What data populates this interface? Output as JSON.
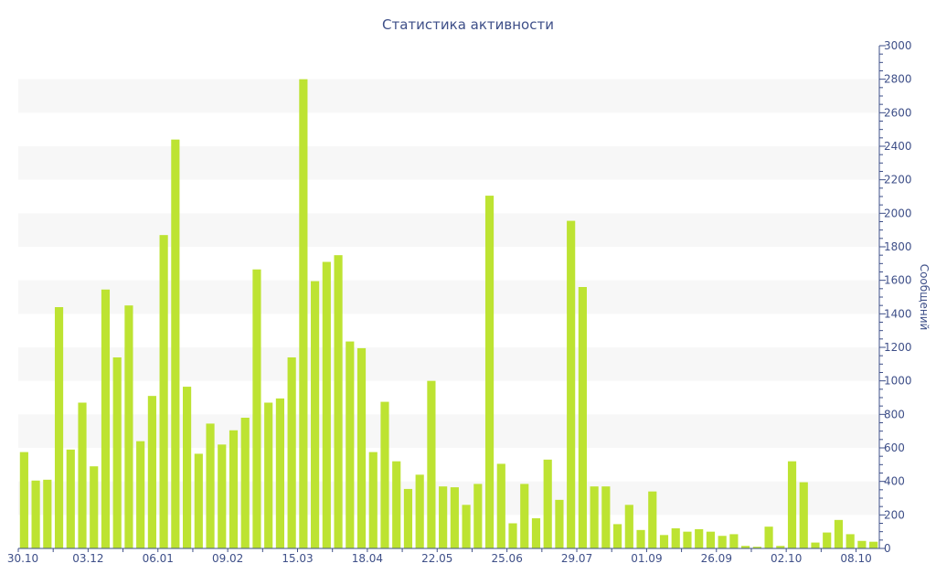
{
  "chart_data": {
    "type": "bar",
    "title": "Статистика активности",
    "xlabel": "",
    "ylabel": "Сообщений",
    "ylim": [
      0,
      3000
    ],
    "y_ticks": [
      0,
      200,
      400,
      600,
      800,
      1000,
      1200,
      1400,
      1600,
      1800,
      2000,
      2200,
      2400,
      2600,
      2800,
      3000
    ],
    "y_axis_position": "right",
    "grid": "alternating horizontal bands",
    "bar_color": "#bde332",
    "band_color": "#f7f7f7",
    "axis_color": "#3e4f88",
    "x_labels": [
      {
        "index": 0,
        "text": "30.10"
      },
      {
        "index": 6,
        "text": "03.12"
      },
      {
        "index": 12,
        "text": "06.01"
      },
      {
        "index": 18,
        "text": "09.02"
      },
      {
        "index": 24,
        "text": "15.03"
      },
      {
        "index": 30,
        "text": "18.04"
      },
      {
        "index": 36,
        "text": "22.05"
      },
      {
        "index": 42,
        "text": "25.06"
      },
      {
        "index": 48,
        "text": "29.07"
      },
      {
        "index": 54,
        "text": "01.09"
      },
      {
        "index": 60,
        "text": "26.09"
      },
      {
        "index": 66,
        "text": "02.10"
      },
      {
        "index": 72,
        "text": "08.10"
      }
    ],
    "values": [
      575,
      405,
      410,
      1440,
      590,
      870,
      490,
      1545,
      1140,
      1450,
      640,
      910,
      1870,
      2440,
      965,
      565,
      745,
      620,
      705,
      780,
      1665,
      870,
      895,
      1140,
      2800,
      1595,
      1710,
      1750,
      1235,
      1195,
      575,
      875,
      520,
      355,
      440,
      1000,
      370,
      365,
      260,
      385,
      2105,
      505,
      150,
      385,
      180,
      530,
      290,
      1955,
      1560,
      370,
      370,
      145,
      260,
      110,
      340,
      80,
      120,
      100,
      115,
      100,
      75,
      85,
      15,
      10,
      130,
      15,
      520,
      395,
      35,
      95,
      170,
      85,
      45,
      40
    ]
  }
}
